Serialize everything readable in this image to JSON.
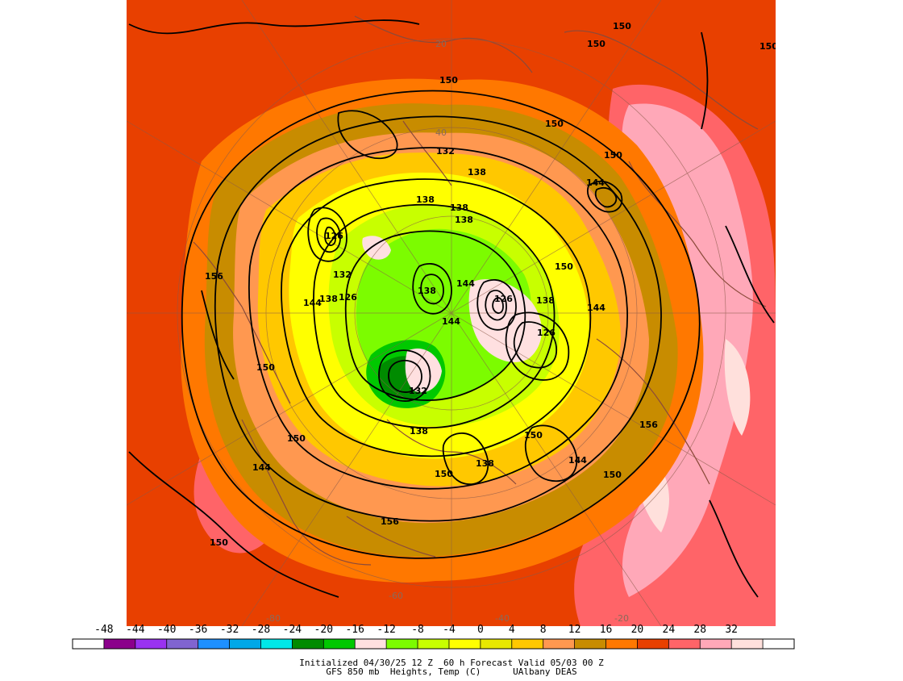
{
  "footer": {
    "line1": "Initialized 04/30/25 12 Z  60 h Forecast Valid 05/03 00 Z",
    "line2": "GFS 850 mb  Heights, Temp (C)      UAlbany DEAS"
  },
  "colorbar": {
    "ticks": [
      "-48",
      "-44",
      "-40",
      "-36",
      "-32",
      "-28",
      "-24",
      "-20",
      "-16",
      "-12",
      "-8",
      "-4",
      "0",
      "4",
      "8",
      "12",
      "16",
      "20",
      "24",
      "28",
      "32"
    ],
    "colors": [
      "#ffffff",
      "#8b008b",
      "#9932f0",
      "#8064d0",
      "#1e90ff",
      "#00a8e8",
      "#00e8e8",
      "#008b00",
      "#00c800",
      "#ffe0e0",
      "#7cfc00",
      "#c8ff00",
      "#ffff00",
      "#e8e800",
      "#ffc800",
      "#ff9850",
      "#c88c00",
      "#ff7800",
      "#e84000",
      "#ff6468",
      "#ffa8b8",
      "#ffe0dc",
      "#ffffff"
    ]
  },
  "map": {
    "colors": {
      "warm_red": "#e84000",
      "orange": "#ff7800",
      "olive": "#c88c00",
      "light_orange": "#ff9850",
      "gold": "#ffc800",
      "yellow": "#ffff00",
      "lime": "#c8ff00",
      "green": "#7cfc00",
      "dark_green": "#008b00",
      "pink": "#ff6468",
      "light_pink": "#ffa8b8",
      "pale_pink": "#ffe0dc",
      "coast": "#8b4a3a"
    },
    "contour_labels": [
      {
        "text": "150"
      },
      {
        "text": "150"
      },
      {
        "text": "150"
      },
      {
        "text": "150"
      },
      {
        "text": "150"
      },
      {
        "text": "150"
      },
      {
        "text": "150"
      },
      {
        "text": "150"
      },
      {
        "text": "150"
      },
      {
        "text": "150"
      },
      {
        "text": "150"
      },
      {
        "text": "150"
      },
      {
        "text": "150"
      },
      {
        "text": "156"
      },
      {
        "text": "156"
      },
      {
        "text": "156"
      },
      {
        "text": "144"
      },
      {
        "text": "144"
      },
      {
        "text": "144"
      },
      {
        "text": "144"
      },
      {
        "text": "144"
      },
      {
        "text": "144"
      },
      {
        "text": "138"
      },
      {
        "text": "138"
      },
      {
        "text": "138"
      },
      {
        "text": "138"
      },
      {
        "text": "138"
      },
      {
        "text": "138"
      },
      {
        "text": "138"
      },
      {
        "text": "138"
      },
      {
        "text": "132"
      },
      {
        "text": "132"
      },
      {
        "text": "132"
      },
      {
        "text": "126"
      },
      {
        "text": "126"
      },
      {
        "text": "126"
      },
      {
        "text": "126"
      },
      {
        "text": "144"
      },
      {
        "text": "138"
      }
    ],
    "lat_labels": [
      "20",
      "40"
    ],
    "lon_labels": [
      "-80",
      "-60",
      "-40",
      "-20"
    ]
  }
}
